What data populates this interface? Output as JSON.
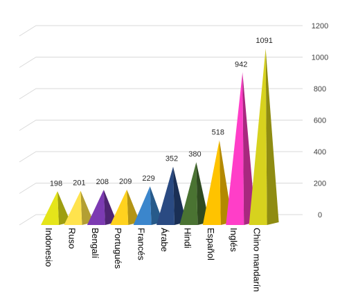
{
  "chart_data": {
    "type": "bar",
    "shape": "3d-pyramid",
    "categories": [
      "Indonesio",
      "Ruso",
      "Bengalí",
      "Portugués",
      "Francés",
      "Árabe",
      "Hindi",
      "Español",
      "Inglés",
      "Chino mandarín"
    ],
    "values": [
      198,
      201,
      208,
      209,
      229,
      352,
      380,
      518,
      942,
      1091
    ],
    "data_labels": [
      "198",
      "201",
      "208",
      "209",
      "229",
      "352",
      "380",
      "518",
      "942",
      "1091"
    ],
    "yticks": [
      "0",
      "200",
      "400",
      "600",
      "800",
      "1000",
      "1200"
    ],
    "ylim": [
      0,
      1200
    ],
    "y_axis_position": "right",
    "grid": true,
    "legend": "none",
    "colors": [
      "#E5E51A",
      "#FFE34D",
      "#7C3AB2",
      "#FFD21E",
      "#3B86CC",
      "#2A4A82",
      "#4A7332",
      "#FFC300",
      "#FF3EC8",
      "#D7D21E"
    ],
    "shadow_colors": [
      "#9E9E10",
      "#B39F33",
      "#4F2472",
      "#B39415",
      "#275A8A",
      "#1A2F55",
      "#2F4A20",
      "#B38900",
      "#A8287F",
      "#8F8C12"
    ],
    "title": "",
    "xlabel": "",
    "ylabel": ""
  }
}
